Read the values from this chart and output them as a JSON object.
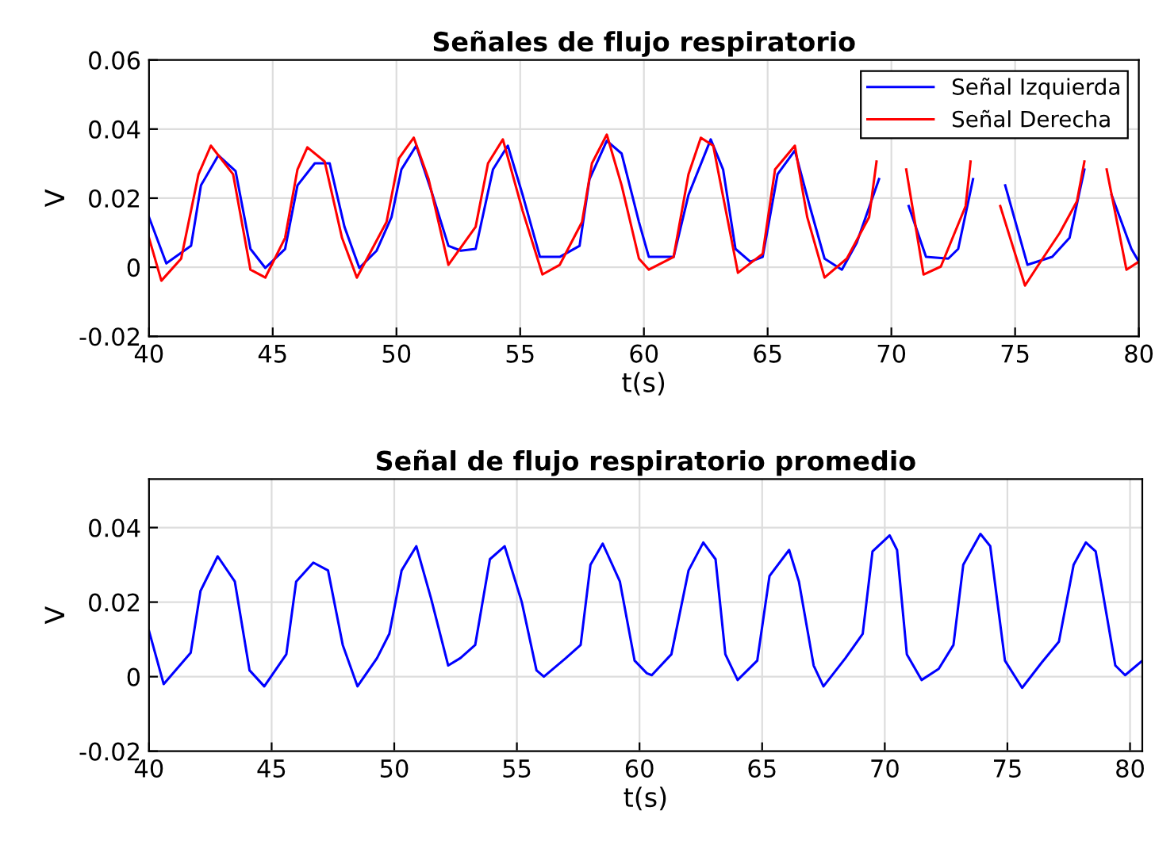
{
  "chart_data": [
    {
      "type": "line",
      "title": "Señales de flujo respiratorio",
      "xlabel": "t(s)",
      "ylabel": "V",
      "xlim": [
        40,
        80
      ],
      "xticks": [
        40,
        45,
        50,
        55,
        60,
        65,
        70,
        75,
        80
      ],
      "ylim": [
        -0.02,
        0.06
      ],
      "yticks": [
        -0.02,
        0,
        0.02,
        0.04,
        0.06
      ],
      "grid": true,
      "legend": "top right",
      "series": [
        {
          "name": "Señal Izquierda",
          "color": "#0000ff",
          "x": [
            40,
            40.7,
            41.7,
            42.1,
            42.8,
            43.5,
            44.1,
            44.7,
            45.5,
            46.0,
            46.7,
            47.3,
            47.9,
            48.5,
            49.2,
            49.8,
            50.2,
            50.8,
            51.4,
            52.1,
            52.6,
            53.2,
            53.9,
            54.5,
            55.1,
            55.8,
            56.6,
            57.4,
            57.8,
            58.5,
            59.1,
            59.8,
            60.2,
            61.2,
            61.8,
            62.7,
            63.2,
            63.7,
            64.3,
            64.8,
            65.4,
            66.1,
            66.7,
            67.3,
            68.0,
            68.6,
            69.5,
            69.8,
            70.7,
            71.4,
            72.3,
            72.7,
            73.3,
            73.9,
            74.6,
            75.5,
            76.5,
            77.2,
            77.8,
            78.3,
            78.9,
            79.7,
            80
          ],
          "values": [
            0.0145,
            0.0011,
            0.0062,
            0.0237,
            0.0324,
            0.0278,
            0.0053,
            -0.0002,
            0.0053,
            0.0237,
            0.0301,
            0.0301,
            0.0117,
            -0.0002,
            0.0048,
            0.0145,
            0.0283,
            0.0352,
            0.0223,
            0.0062,
            0.0048,
            0.0053,
            0.0283,
            0.0352,
            0.0209,
            0.003,
            0.003,
            0.0062,
            0.0255,
            0.0366,
            0.0329,
            0.0131,
            0.003,
            0.003,
            0.0209,
            0.037,
            0.0283,
            0.0053,
            0.0016,
            0.003,
            0.0269,
            0.0338,
            0.0177,
            0.0025,
            -0.0007,
            0.0071,
            0.0255,
            null,
            0.0177,
            0.003,
            0.0025,
            0.0053,
            0.0255,
            null,
            0.0237,
            0.0007,
            0.003,
            0.0085,
            0.0283,
            null,
            0.0209,
            0.0053,
            0.0016
          ]
        },
        {
          "name": "Señal Derecha",
          "color": "#ff0000",
          "x": [
            40,
            40.5,
            41.3,
            42.0,
            42.5,
            43.4,
            44.1,
            44.7,
            45.5,
            46.0,
            46.4,
            47.1,
            47.8,
            48.4,
            49.6,
            50.1,
            50.7,
            51.3,
            52.1,
            53.2,
            53.7,
            54.3,
            55.1,
            55.9,
            56.6,
            57.5,
            57.9,
            58.5,
            59.1,
            59.8,
            60.2,
            61.2,
            61.8,
            62.3,
            62.8,
            63.8,
            64.8,
            65.3,
            66.1,
            66.6,
            67.3,
            68.2,
            69.1,
            69.4,
            69.9,
            70.6,
            71.3,
            72.0,
            73.0,
            73.2,
            73.7,
            74.4,
            75.4,
            75.9,
            76.8,
            77.5,
            77.8,
            78.3,
            78.7,
            79.5,
            80
          ],
          "values": [
            0.0085,
            -0.0039,
            0.0025,
            0.0269,
            0.0352,
            0.0269,
            -0.0007,
            -0.003,
            0.0085,
            0.0283,
            0.0347,
            0.0306,
            0.0085,
            -0.003,
            0.0131,
            0.0315,
            0.0375,
            0.0255,
            0.0007,
            0.0117,
            0.0301,
            0.037,
            0.0163,
            -0.0021,
            0.0007,
            0.0131,
            0.0301,
            0.0384,
            0.0237,
            0.0025,
            -0.0007,
            0.003,
            0.0269,
            0.0375,
            0.0352,
            -0.0016,
            0.0039,
            0.0283,
            0.0352,
            0.0145,
            -0.003,
            0.0025,
            0.0145,
            0.0306,
            null,
            0.0283,
            -0.0021,
            0.0002,
            0.0177,
            0.0306,
            null,
            0.0177,
            -0.0053,
            0.0002,
            0.0099,
            0.0191,
            0.0306,
            null,
            0.0283,
            -0.0007,
            0.0016
          ]
        }
      ]
    },
    {
      "type": "line",
      "title": "Señal de flujo respiratorio promedio",
      "xlabel": "t(s)",
      "ylabel": "V",
      "xlim": [
        40,
        80.5
      ],
      "xticks": [
        40,
        45,
        50,
        55,
        60,
        65,
        70,
        75,
        80
      ],
      "ylim": [
        -0.02,
        0.053
      ],
      "yticks": [
        -0.02,
        0,
        0.02,
        0.04
      ],
      "grid": true,
      "series": [
        {
          "color": "#0000ff",
          "x": [
            40,
            40.6,
            41.7,
            42.1,
            42.8,
            43.5,
            44.1,
            44.7,
            45.6,
            46.0,
            46.7,
            47.3,
            47.9,
            48.5,
            49.3,
            49.8,
            50.3,
            50.9,
            51.5,
            52.2,
            52.7,
            53.3,
            53.9,
            54.5,
            55.2,
            55.8,
            56.1,
            57.0,
            57.6,
            58.0,
            58.5,
            59.2,
            59.8,
            60.3,
            60.5,
            61.3,
            62.0,
            62.6,
            63.1,
            63.5,
            64.0,
            64.8,
            65.3,
            66.1,
            66.5,
            67.1,
            67.5,
            68.4,
            69.1,
            69.5,
            70.2,
            70.5,
            70.9,
            71.5,
            72.2,
            72.8,
            73.2,
            73.9,
            74.3,
            74.9,
            75.6,
            76.4,
            77.1,
            77.7,
            78.2,
            78.6,
            79.4,
            79.8,
            80.5
          ],
          "values": [
            0.0123,
            -0.002,
            0.0064,
            0.023,
            0.0323,
            0.0255,
            0.0017,
            -0.0026,
            0.006,
            0.0255,
            0.0306,
            0.0285,
            0.0085,
            -0.0026,
            0.005,
            0.0115,
            0.0285,
            0.035,
            0.021,
            0.003,
            0.005,
            0.0085,
            0.0315,
            0.035,
            0.02,
            0.0017,
            0.0,
            0.005,
            0.0085,
            0.03,
            0.0357,
            0.0255,
            0.0043,
            0.0009,
            0.0004,
            0.006,
            0.0285,
            0.036,
            0.0315,
            0.006,
            -0.0009,
            0.0043,
            0.027,
            0.034,
            0.0255,
            0.003,
            -0.0026,
            0.005,
            0.0115,
            0.0336,
            0.0379,
            0.034,
            0.006,
            -0.0009,
            0.0021,
            0.0085,
            0.03,
            0.0383,
            0.035,
            0.0043,
            -0.003,
            0.0038,
            0.0094,
            0.03,
            0.036,
            0.0336,
            0.003,
            0.0004,
            0.0043
          ]
        }
      ]
    }
  ]
}
